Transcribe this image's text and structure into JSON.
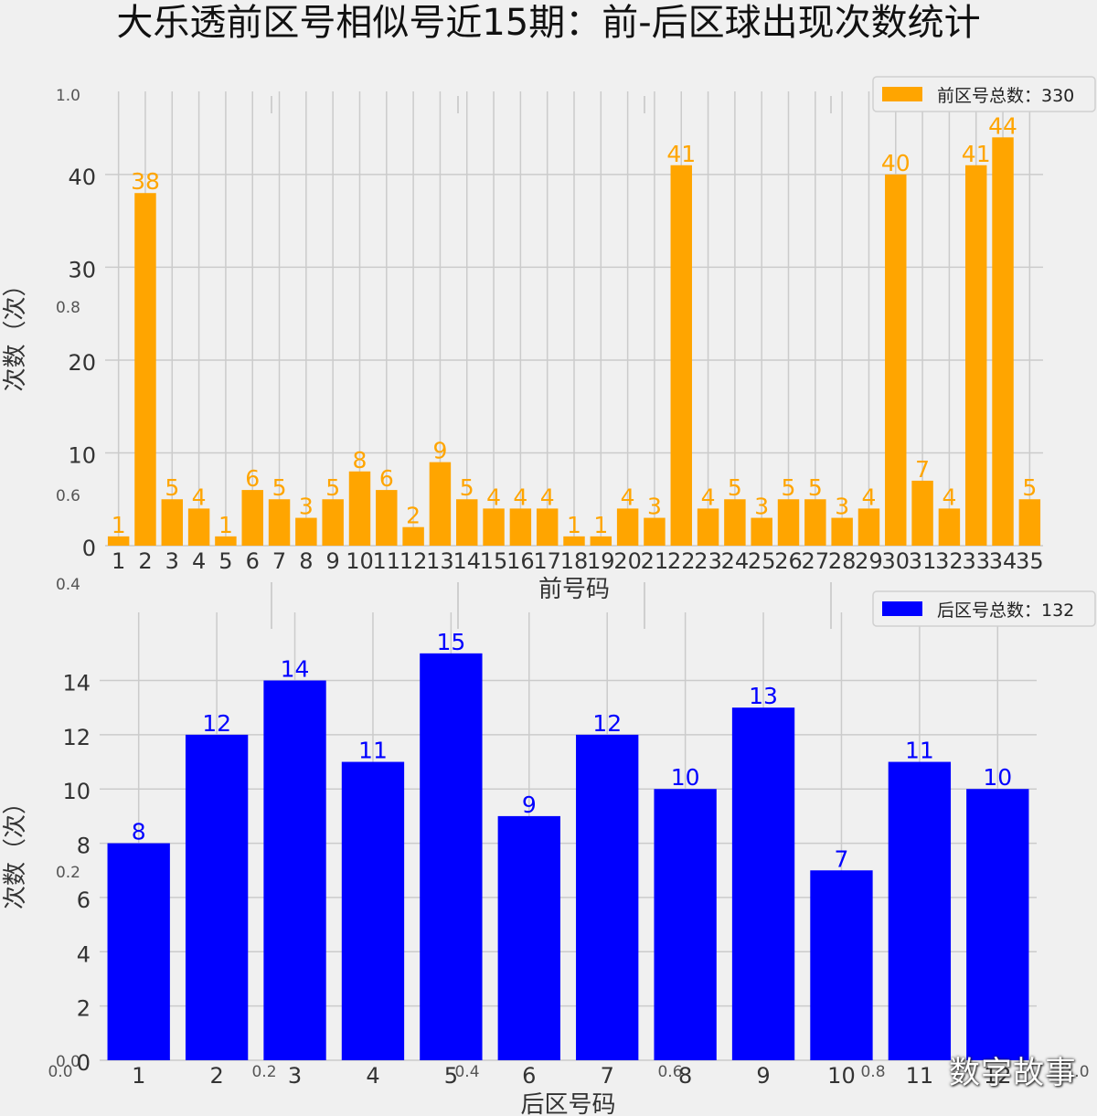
{
  "title": "大乐透前区号相似号近15期：前-后区球出现次数统计",
  "watermark": "数字故事",
  "ghost_axis": {
    "y_ticks": [
      "1.0",
      "0.8",
      "0.6",
      "0.4",
      "0.2",
      "0.0"
    ],
    "x_ticks": [
      "0.0",
      "0.2",
      "0.4",
      "0.6",
      "0.8",
      "1.0"
    ]
  },
  "chart_data": [
    {
      "type": "bar",
      "categories": [
        "1",
        "2",
        "3",
        "4",
        "5",
        "6",
        "7",
        "8",
        "9",
        "10",
        "11",
        "12",
        "13",
        "14",
        "15",
        "16",
        "17",
        "18",
        "19",
        "20",
        "21",
        "22",
        "23",
        "24",
        "25",
        "26",
        "27",
        "28",
        "29",
        "30",
        "31",
        "32",
        "33",
        "34",
        "35"
      ],
      "series": [
        {
          "name": "前区号总数：330",
          "values": [
            1,
            38,
            5,
            4,
            1,
            6,
            5,
            3,
            5,
            8,
            6,
            2,
            9,
            5,
            4,
            4,
            4,
            1,
            1,
            4,
            3,
            41,
            4,
            5,
            3,
            5,
            5,
            3,
            4,
            40,
            7,
            4,
            41,
            44,
            5
          ]
        }
      ],
      "xlabel": "前号码",
      "ylabel": "次数（次）",
      "ylim": [
        0,
        46
      ],
      "yticks": [
        0,
        10,
        20,
        30,
        40
      ],
      "grid": true,
      "legend": "top-right",
      "color": "#ffa500"
    },
    {
      "type": "bar",
      "categories": [
        "1",
        "2",
        "3",
        "4",
        "5",
        "6",
        "7",
        "8",
        "9",
        "10",
        "11",
        "12"
      ],
      "series": [
        {
          "name": "后区号总数：132",
          "values": [
            8,
            12,
            14,
            11,
            15,
            9,
            12,
            10,
            13,
            7,
            11,
            10
          ]
        }
      ],
      "xlabel": "后区号码",
      "ylabel": "次数（次）",
      "ylim": [
        0,
        15.5
      ],
      "yticks": [
        0,
        2,
        4,
        6,
        8,
        10,
        12,
        14
      ],
      "grid": true,
      "legend": "top-right",
      "color": "#0000ff"
    }
  ]
}
